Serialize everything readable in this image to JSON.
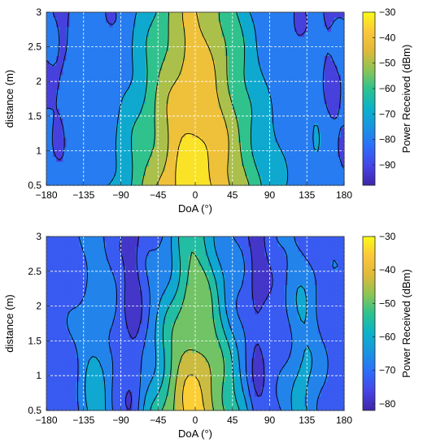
{
  "chart_data": [
    {
      "type": "heatmap",
      "subtype": "filled-contour",
      "xlabel": "DoA (°)",
      "ylabel": "distance (m)",
      "xlim": [
        -180,
        180
      ],
      "ylim": [
        0.5,
        3
      ],
      "xticks": [
        "-180",
        "-135",
        "-90",
        "-45",
        "0",
        "45",
        "90",
        "135",
        "180"
      ],
      "yticks": [
        "0.5",
        "1",
        "1.5",
        "2",
        "2.5",
        "3"
      ],
      "grid": true,
      "colorbar": {
        "label": "Power Received (dBm)",
        "range": [
          -98,
          -30
        ],
        "ticks": [
          "-30",
          "-40",
          "-50",
          "-60",
          "-70",
          "-80",
          "-90"
        ],
        "colormap": [
          "#3e26a8",
          "#4744e6",
          "#2d6df9",
          "#1a94e1",
          "#0bb2c8",
          "#2dc28f",
          "#8cc455",
          "#e0b93a",
          "#fcc73b",
          "#f9fb15"
        ]
      },
      "contour_levels": [
        -85,
        -75,
        -65,
        -55,
        -45,
        -37
      ],
      "field": {
        "peak_doa": 0,
        "peak_dBm_at_0_5m": -32,
        "peak_dBm_at_3m": -45,
        "broadside_width_deg_at_0_5m": 105,
        "broadside_width_deg_at_3m": 75,
        "sidelobe_doa": [
          -150,
          150
        ],
        "null_doa": [
          -160,
          160
        ],
        "null_dBm": -85
      },
      "colors": {
        "contour_line": "#000000",
        "grid": "#ffffff"
      }
    },
    {
      "type": "heatmap",
      "subtype": "filled-contour",
      "xlabel": "DoA (°)",
      "ylabel": "distance (m)",
      "xlim": [
        -180,
        180
      ],
      "ylim": [
        0.5,
        3
      ],
      "xticks": [
        "-180",
        "-135",
        "-90",
        "-45",
        "0",
        "45",
        "90",
        "135",
        "180"
      ],
      "yticks": [
        "0.5",
        "1",
        "1.5",
        "2",
        "2.5",
        "3"
      ],
      "grid": true,
      "colorbar": {
        "label": "Power Received (dBm)",
        "range": [
          -82,
          -30
        ],
        "ticks": [
          "-30",
          "-40",
          "-50",
          "-60",
          "-70",
          "-80"
        ],
        "colormap": [
          "#3e26a8",
          "#4744e6",
          "#2d6df9",
          "#1a94e1",
          "#0bb2c8",
          "#2dc28f",
          "#8cc455",
          "#e0b93a",
          "#fcc73b",
          "#f9fb15"
        ]
      },
      "contour_levels": [
        -76,
        -70,
        -64,
        -58,
        -52,
        -46,
        -40
      ],
      "field": {
        "peak_doa": 0,
        "peak_dBm_at_0_5m": -38,
        "peak_dBm_at_3m": -54,
        "broadside_width_deg_at_0_5m": 70,
        "broadside_width_deg_at_3m": 40,
        "sidelobe_doa": [
          -120,
          130
        ],
        "null_doa": [
          -75,
          75
        ],
        "null_dBm": -73
      },
      "colors": {
        "contour_line": "#000000",
        "grid": "#ffffff"
      }
    }
  ]
}
